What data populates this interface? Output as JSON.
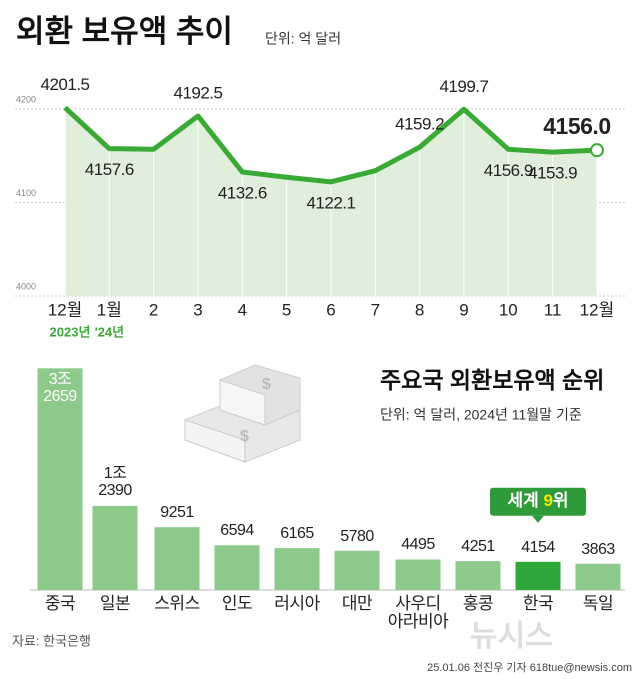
{
  "chart_data": [
    {
      "type": "line",
      "title": "외환 보유액 추이",
      "subtitle": "단위: 억 달러",
      "categories": [
        "12월",
        "1월",
        "2",
        "3",
        "4",
        "5",
        "6",
        "7",
        "8",
        "9",
        "10",
        "11",
        "12월"
      ],
      "x_sublabels": [
        "2023년",
        "'24년",
        null,
        null,
        null,
        null,
        null,
        null,
        null,
        null,
        null,
        null,
        null
      ],
      "values": [
        4201.5,
        4157.6,
        4157,
        4192.5,
        4132.6,
        4127,
        4122.1,
        4134,
        4159.2,
        4199.7,
        4156.9,
        4153.9,
        4156.0
      ],
      "value_labels": [
        "4201.5",
        "4157.6",
        null,
        "4192.5",
        "4132.6",
        null,
        "4122.1",
        null,
        "4159.2",
        "4199.7",
        "4156.9",
        "4153.9",
        "4156.0"
      ],
      "color": "#3aa935",
      "area_color": "#e0efdb",
      "ylim": [
        4000,
        4215
      ],
      "yticks": [
        4000,
        4100,
        4200
      ],
      "grid": true
    },
    {
      "type": "bar",
      "title": "주요국 외환보유액 순위",
      "subtitle": "단위: 억 달러, 2024년 11월말 기준",
      "categories": [
        "중국",
        "일본",
        "스위스",
        "인도",
        "러시아",
        "대만",
        "사우디\n아라비아",
        "홍콩",
        "한국",
        "독일"
      ],
      "values": [
        32659,
        12390,
        9251,
        6594,
        6165,
        5780,
        4495,
        4251,
        4154,
        3863
      ],
      "value_labels": [
        "3조\n2659",
        "1조\n2390",
        "9251",
        "6594",
        "6165",
        "5780",
        "4495",
        "4251",
        "4154",
        "3863"
      ],
      "colors": [
        "#8dc98b",
        "#8dc98b",
        "#8dc98b",
        "#8dc98b",
        "#8dc98b",
        "#8dc98b",
        "#8dc98b",
        "#8dc98b",
        "#2fa83a",
        "#8dc98b"
      ],
      "annotation_parts": [
        "세계 ",
        "9",
        "위"
      ],
      "ylim": [
        0,
        33000
      ]
    }
  ],
  "source": "자료: 한국은행",
  "credit": "25.01.06 전진우 기자 618tue@newsis.com",
  "watermark": "뉴시스"
}
